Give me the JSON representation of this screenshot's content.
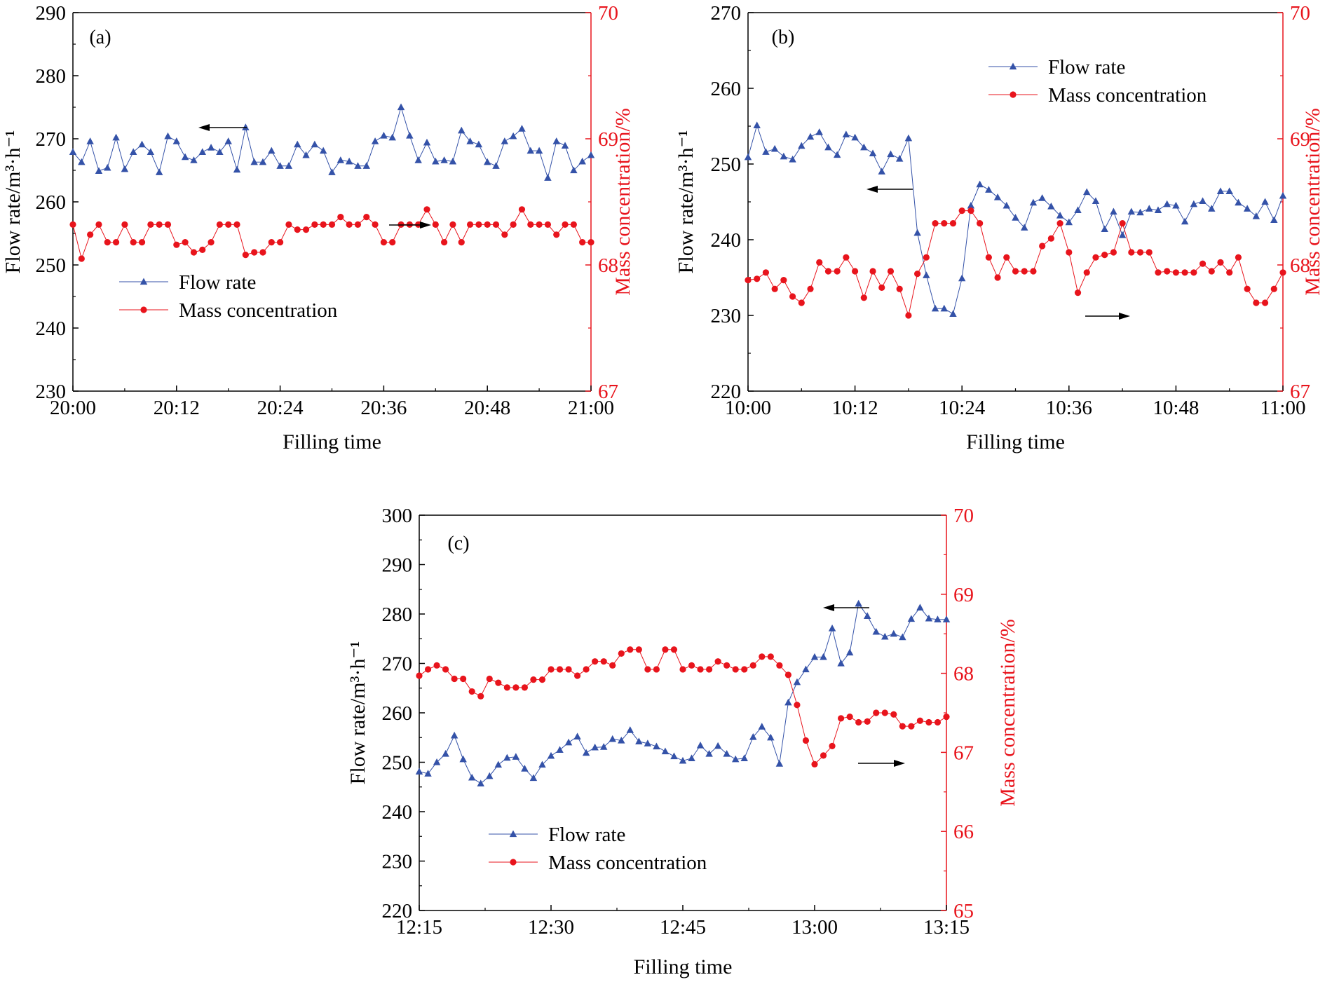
{
  "colors": {
    "flow": "#3452a8",
    "conc": "#e8141c",
    "axis": "#000000"
  },
  "chart_data": [
    {
      "type": "line",
      "panel": "(a)",
      "xlabel": "Filling time",
      "ylabel": "Flow rate/m³·h⁻¹",
      "y2label": "Mass concentration/%",
      "x_ticks": [
        "20:00",
        "20:12",
        "20:24",
        "20:36",
        "20:48",
        "21:00"
      ],
      "x_range": [
        0,
        60
      ],
      "y_ticks": [
        230,
        240,
        250,
        260,
        270,
        280,
        290
      ],
      "ylim": [
        230,
        290
      ],
      "y2_ticks": [
        67,
        68,
        69,
        70
      ],
      "y2lim": [
        67,
        70
      ],
      "legend": [
        "Flow rate",
        "Mass concentration"
      ],
      "legend_position": "bottom-left",
      "series": [
        {
          "name": "Flow rate",
          "axis": "left",
          "x": [
            0,
            1,
            2,
            3,
            4,
            5,
            6,
            7,
            8,
            9,
            10,
            11,
            12,
            13,
            14,
            15,
            16,
            17,
            18,
            19,
            20,
            21,
            22,
            23,
            24,
            25,
            26,
            27,
            28,
            29,
            30,
            31,
            32,
            33,
            34,
            35,
            36,
            37,
            38,
            39,
            40,
            41,
            42,
            43,
            44,
            45,
            46,
            47,
            48,
            49,
            50,
            51,
            52,
            53,
            54,
            55,
            56,
            57,
            58,
            59,
            60
          ],
          "values": [
            267.9,
            266.3,
            269.6,
            264.9,
            265.4,
            270.2,
            265.2,
            267.9,
            269.1,
            267.9,
            264.7,
            270.4,
            269.6,
            267.1,
            266.6,
            267.9,
            268.6,
            267.9,
            269.6,
            265.1,
            271.8,
            266.3,
            266.3,
            268.1,
            265.7,
            265.7,
            269.1,
            267.4,
            269.1,
            268.1,
            264.7,
            266.6,
            266.4,
            265.7,
            265.7,
            269.6,
            270.5,
            270.2,
            275.0,
            270.5,
            266.6,
            269.4,
            266.4,
            266.6,
            266.4,
            271.3,
            269.6,
            269.1,
            266.3,
            265.7,
            269.6,
            270.4,
            271.6,
            268.1,
            268.1,
            263.8,
            269.6,
            268.9,
            265.0,
            266.4,
            267.4
          ]
        },
        {
          "name": "Mass concentration",
          "axis": "right",
          "x": [
            0,
            1,
            2,
            3,
            4,
            5,
            6,
            7,
            8,
            9,
            10,
            11,
            12,
            13,
            14,
            15,
            16,
            17,
            18,
            19,
            20,
            21,
            22,
            23,
            24,
            25,
            26,
            27,
            28,
            29,
            30,
            31,
            32,
            33,
            34,
            35,
            36,
            37,
            38,
            39,
            40,
            41,
            42,
            43,
            44,
            45,
            46,
            47,
            48,
            49,
            50,
            51,
            52,
            53,
            54,
            55,
            56,
            57,
            58,
            59,
            60
          ],
          "values": [
            68.32,
            68.05,
            68.24,
            68.32,
            68.18,
            68.18,
            68.32,
            68.18,
            68.18,
            68.32,
            68.32,
            68.32,
            68.16,
            68.18,
            68.1,
            68.12,
            68.18,
            68.32,
            68.32,
            68.32,
            68.08,
            68.1,
            68.1,
            68.18,
            68.18,
            68.32,
            68.28,
            68.28,
            68.32,
            68.32,
            68.32,
            68.38,
            68.32,
            68.32,
            68.38,
            68.32,
            68.18,
            68.18,
            68.32,
            68.32,
            68.32,
            68.44,
            68.32,
            68.18,
            68.32,
            68.18,
            68.32,
            68.32,
            68.32,
            68.32,
            68.24,
            68.32,
            68.44,
            68.32,
            68.32,
            68.32,
            68.24,
            68.32,
            68.32,
            68.18,
            68.18
          ]
        }
      ],
      "annotations": [
        "arrow-left near Flow rate",
        "arrow-right near Mass concentration"
      ]
    },
    {
      "type": "line",
      "panel": "(b)",
      "xlabel": "Filling time",
      "ylabel": "Flow rate/m³·h⁻¹",
      "y2label": "Mass concentration/%",
      "x_ticks": [
        "10:00",
        "10:12",
        "10:24",
        "10:36",
        "10:48",
        "11:00"
      ],
      "x_range": [
        0,
        60
      ],
      "y_ticks": [
        220,
        230,
        240,
        250,
        260,
        270
      ],
      "ylim": [
        220,
        270
      ],
      "y2_ticks": [
        67,
        68,
        69,
        70
      ],
      "y2lim": [
        67,
        70
      ],
      "legend": [
        "Flow rate",
        "Mass concentration"
      ],
      "legend_position": "top-right",
      "series": [
        {
          "name": "Flow rate",
          "axis": "left",
          "x": [
            0,
            1,
            2,
            3,
            4,
            5,
            6,
            7,
            8,
            9,
            10,
            11,
            12,
            13,
            14,
            15,
            16,
            17,
            18,
            19,
            20,
            21,
            22,
            23,
            24,
            25,
            26,
            27,
            28,
            29,
            30,
            31,
            32,
            33,
            34,
            35,
            36,
            37,
            38,
            39,
            40,
            41,
            42,
            43,
            44,
            45,
            46,
            47,
            48,
            49,
            50,
            51,
            52,
            53,
            54,
            55,
            56,
            57,
            58,
            59,
            60
          ],
          "values": [
            250.9,
            255.1,
            251.6,
            252.0,
            251.0,
            250.6,
            252.4,
            253.6,
            254.2,
            252.2,
            251.2,
            253.9,
            253.5,
            252.2,
            251.4,
            249.0,
            251.3,
            250.7,
            253.4,
            240.9,
            235.3,
            230.9,
            230.9,
            230.2,
            234.9,
            244.5,
            247.3,
            246.6,
            245.6,
            244.5,
            242.9,
            241.6,
            244.9,
            245.5,
            244.4,
            243.2,
            242.3,
            243.9,
            246.3,
            245.1,
            241.4,
            243.7,
            240.6,
            243.7,
            243.6,
            244.1,
            243.9,
            244.7,
            244.5,
            242.4,
            244.7,
            245.1,
            244.1,
            246.4,
            246.4,
            244.9,
            244.1,
            243.1,
            245.0,
            242.6,
            245.8
          ]
        },
        {
          "name": "Mass concentration",
          "axis": "right",
          "x": [
            0,
            1,
            2,
            3,
            4,
            5,
            6,
            7,
            8,
            9,
            10,
            11,
            12,
            13,
            14,
            15,
            16,
            17,
            18,
            19,
            20,
            21,
            22,
            23,
            24,
            25,
            26,
            27,
            28,
            29,
            30,
            31,
            32,
            33,
            34,
            35,
            36,
            37,
            38,
            39,
            40,
            41,
            42,
            43,
            44,
            45,
            46,
            47,
            48,
            49,
            50,
            51,
            52,
            53,
            54,
            55,
            56,
            57,
            58,
            59,
            60
          ],
          "values": [
            67.88,
            67.89,
            67.94,
            67.81,
            67.88,
            67.75,
            67.7,
            67.81,
            68.02,
            67.95,
            67.95,
            68.06,
            67.95,
            67.74,
            67.95,
            67.82,
            67.95,
            67.81,
            67.6,
            67.93,
            68.06,
            68.33,
            68.33,
            68.33,
            68.43,
            68.43,
            68.33,
            68.06,
            67.9,
            68.06,
            67.95,
            67.95,
            67.95,
            68.15,
            68.21,
            68.33,
            68.1,
            67.78,
            67.94,
            68.06,
            68.08,
            68.1,
            68.33,
            68.1,
            68.1,
            68.1,
            67.94,
            67.95,
            67.94,
            67.94,
            67.94,
            68.01,
            67.95,
            68.02,
            67.94,
            68.06,
            67.81,
            67.7,
            67.7,
            67.81,
            67.94
          ]
        }
      ],
      "annotations": [
        "arrow-left near Flow rate",
        "arrow-right near Mass concentration"
      ]
    },
    {
      "type": "line",
      "panel": "(c)",
      "xlabel": "Filling time",
      "ylabel": "Flow rate/m³·h⁻¹",
      "y2label": "Mass concentration/%",
      "x_ticks": [
        "12:15",
        "12:30",
        "12:45",
        "13:00",
        "13:15"
      ],
      "x_range": [
        0,
        60
      ],
      "y_ticks": [
        220,
        230,
        240,
        250,
        260,
        270,
        280,
        290,
        300
      ],
      "ylim": [
        220,
        300
      ],
      "y2_ticks": [
        65,
        66,
        67,
        68,
        69,
        70
      ],
      "y2lim": [
        65,
        70
      ],
      "legend": [
        "Flow rate",
        "Mass concentration"
      ],
      "legend_position": "bottom-left",
      "series": [
        {
          "name": "Flow rate",
          "axis": "left",
          "x": [
            0,
            1,
            2,
            3,
            4,
            5,
            6,
            7,
            8,
            9,
            10,
            11,
            12,
            13,
            14,
            15,
            16,
            17,
            18,
            19,
            20,
            21,
            22,
            23,
            24,
            25,
            26,
            27,
            28,
            29,
            30,
            31,
            32,
            33,
            34,
            35,
            36,
            37,
            38,
            39,
            40,
            41,
            42,
            43,
            44,
            45,
            46,
            47,
            48,
            49,
            50,
            51,
            52,
            53,
            54,
            55,
            56,
            57,
            58,
            59,
            60
          ],
          "values": [
            248.1,
            247.7,
            250.0,
            251.7,
            255.4,
            250.6,
            246.9,
            245.7,
            247.2,
            249.5,
            250.9,
            251.1,
            248.7,
            246.8,
            249.5,
            251.3,
            252.5,
            254.0,
            255.2,
            251.9,
            253.0,
            253.1,
            254.7,
            254.4,
            256.5,
            254.2,
            253.8,
            253.2,
            252.2,
            251.2,
            250.3,
            250.8,
            253.4,
            251.7,
            253.3,
            251.7,
            250.6,
            250.8,
            255.1,
            257.2,
            255.0,
            249.7,
            262.1,
            266.2,
            268.8,
            271.3,
            271.3,
            277.1,
            270.0,
            272.2,
            282.1,
            279.6,
            276.4,
            275.4,
            276.0,
            275.3,
            279.0,
            281.3,
            279.1,
            278.9,
            278.9
          ]
        },
        {
          "name": "Mass concentration",
          "axis": "right",
          "x": [
            0,
            1,
            2,
            3,
            4,
            5,
            6,
            7,
            8,
            9,
            10,
            11,
            12,
            13,
            14,
            15,
            16,
            17,
            18,
            19,
            20,
            21,
            22,
            23,
            24,
            25,
            26,
            27,
            28,
            29,
            30,
            31,
            32,
            33,
            34,
            35,
            36,
            37,
            38,
            39,
            40,
            41,
            42,
            43,
            44,
            45,
            46,
            47,
            48,
            49,
            50,
            51,
            52,
            53,
            54,
            55,
            56,
            57,
            58,
            59,
            60
          ],
          "values": [
            67.97,
            68.05,
            68.1,
            68.05,
            67.93,
            67.93,
            67.77,
            67.71,
            67.93,
            67.88,
            67.82,
            67.82,
            67.82,
            67.92,
            67.92,
            68.05,
            68.05,
            68.05,
            67.97,
            68.05,
            68.15,
            68.15,
            68.1,
            68.25,
            68.3,
            68.3,
            68.05,
            68.05,
            68.3,
            68.3,
            68.05,
            68.1,
            68.05,
            68.05,
            68.15,
            68.1,
            68.05,
            68.05,
            68.1,
            68.21,
            68.21,
            68.1,
            67.98,
            67.6,
            67.15,
            66.85,
            66.96,
            67.08,
            67.43,
            67.45,
            67.38,
            67.39,
            67.5,
            67.5,
            67.48,
            67.33,
            67.33,
            67.4,
            67.38,
            67.38,
            67.45
          ]
        }
      ],
      "annotations": [
        "arrow-left near Flow rate",
        "arrow-right near Mass concentration"
      ]
    }
  ]
}
